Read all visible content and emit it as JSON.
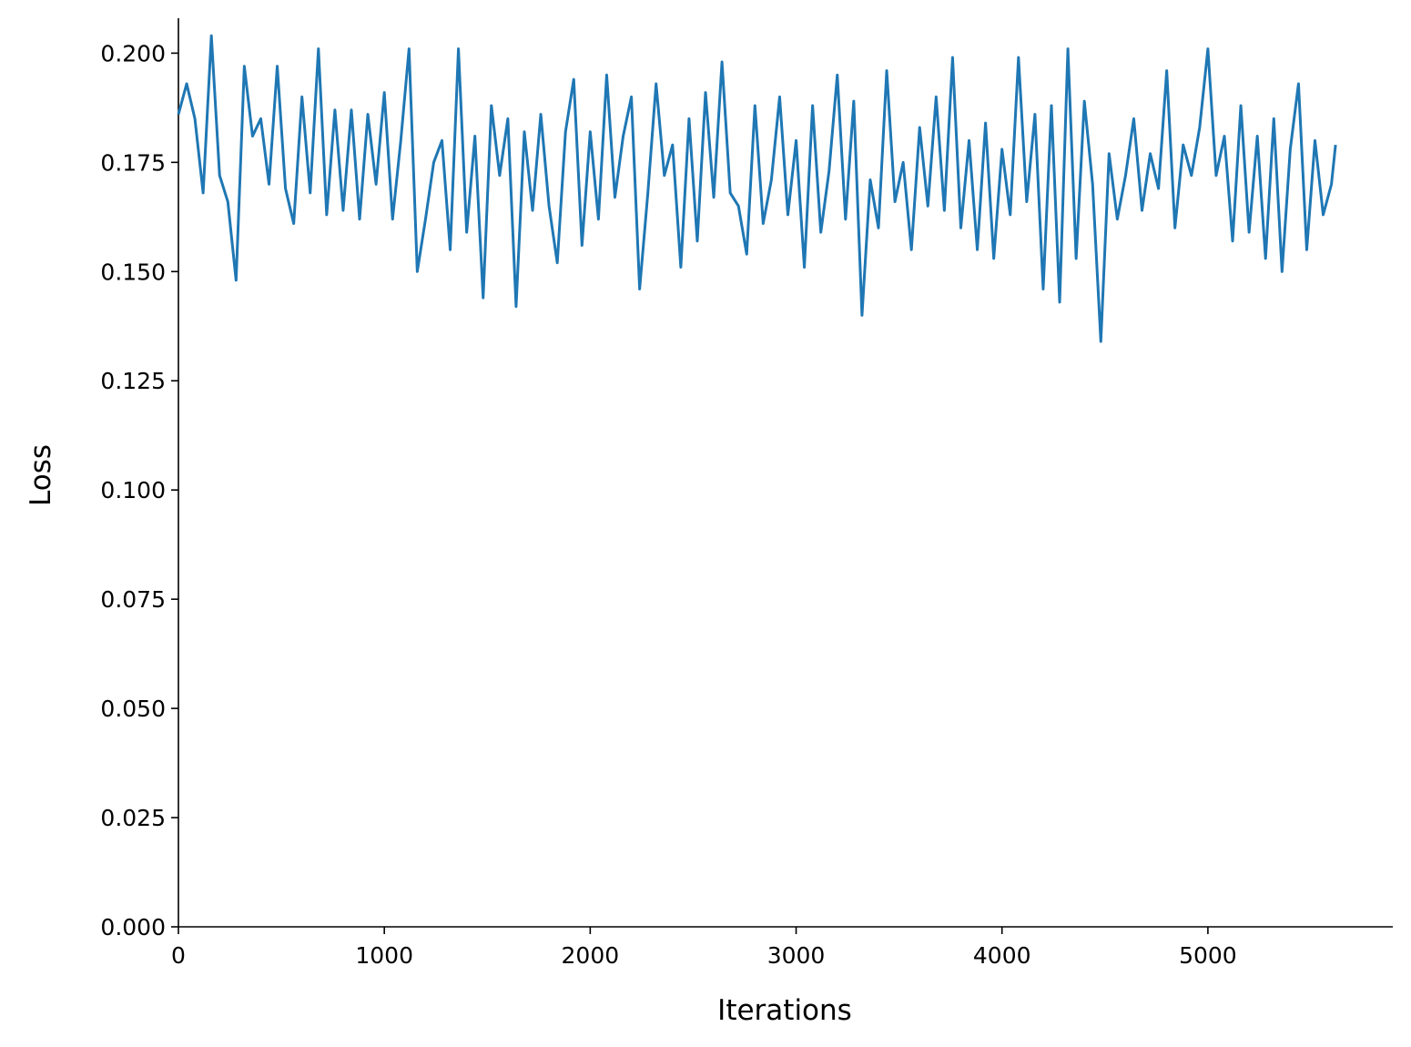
{
  "chart_data": {
    "type": "line",
    "xlabel": "Iterations",
    "ylabel": "Loss",
    "x": [
      0,
      40,
      80,
      120,
      160,
      200,
      240,
      280,
      320,
      360,
      400,
      440,
      480,
      520,
      560,
      600,
      640,
      680,
      720,
      760,
      800,
      840,
      880,
      920,
      960,
      1000,
      1040,
      1080,
      1120,
      1160,
      1200,
      1240,
      1280,
      1320,
      1360,
      1400,
      1440,
      1480,
      1520,
      1560,
      1600,
      1640,
      1680,
      1720,
      1760,
      1800,
      1840,
      1880,
      1920,
      1960,
      2000,
      2040,
      2080,
      2120,
      2160,
      2200,
      2240,
      2280,
      2320,
      2360,
      2400,
      2440,
      2480,
      2520,
      2560,
      2600,
      2640,
      2680,
      2720,
      2760,
      2800,
      2840,
      2880,
      2920,
      2960,
      3000,
      3040,
      3080,
      3120,
      3160,
      3200,
      3240,
      3280,
      3320,
      3360,
      3400,
      3440,
      3480,
      3520,
      3560,
      3600,
      3640,
      3680,
      3720,
      3760,
      3800,
      3840,
      3880,
      3920,
      3960,
      4000,
      4040,
      4080,
      4120,
      4160,
      4200,
      4240,
      4280,
      4320,
      4360,
      4400,
      4440,
      4480,
      4520,
      4560,
      4600,
      4640,
      4680,
      4720,
      4760,
      4800,
      4840,
      4880,
      4920,
      4960,
      5000,
      5040,
      5080,
      5120,
      5160,
      5200,
      5240,
      5280,
      5320,
      5360,
      5400,
      5440,
      5480,
      5520,
      5560,
      5600,
      5620
    ],
    "series": [
      {
        "name": "Loss",
        "color": "#1f77b4",
        "values": [
          0.186,
          0.193,
          0.185,
          0.168,
          0.204,
          0.172,
          0.166,
          0.148,
          0.197,
          0.181,
          0.185,
          0.17,
          0.197,
          0.169,
          0.161,
          0.19,
          0.168,
          0.201,
          0.163,
          0.187,
          0.164,
          0.187,
          0.162,
          0.186,
          0.17,
          0.191,
          0.162,
          0.18,
          0.201,
          0.15,
          0.162,
          0.175,
          0.18,
          0.155,
          0.201,
          0.159,
          0.181,
          0.144,
          0.188,
          0.172,
          0.185,
          0.142,
          0.182,
          0.164,
          0.186,
          0.165,
          0.152,
          0.182,
          0.194,
          0.156,
          0.182,
          0.162,
          0.195,
          0.167,
          0.181,
          0.19,
          0.146,
          0.168,
          0.193,
          0.172,
          0.179,
          0.151,
          0.185,
          0.157,
          0.191,
          0.167,
          0.198,
          0.168,
          0.165,
          0.154,
          0.188,
          0.161,
          0.171,
          0.19,
          0.163,
          0.18,
          0.151,
          0.188,
          0.159,
          0.173,
          0.195,
          0.162,
          0.189,
          0.14,
          0.171,
          0.16,
          0.196,
          0.166,
          0.175,
          0.155,
          0.183,
          0.165,
          0.19,
          0.164,
          0.199,
          0.16,
          0.18,
          0.155,
          0.184,
          0.153,
          0.178,
          0.163,
          0.199,
          0.166,
          0.186,
          0.146,
          0.188,
          0.143,
          0.201,
          0.153,
          0.189,
          0.17,
          0.134,
          0.177,
          0.162,
          0.172,
          0.185,
          0.164,
          0.177,
          0.169,
          0.196,
          0.16,
          0.179,
          0.172,
          0.183,
          0.201,
          0.172,
          0.181,
          0.157,
          0.188,
          0.159,
          0.181,
          0.153,
          0.185,
          0.15,
          0.178,
          0.193,
          0.155,
          0.18,
          0.163,
          0.17,
          0.179
        ]
      }
    ],
    "xlim": [
      0,
      5898
    ],
    "xticks": [
      0,
      1000,
      2000,
      3000,
      4000,
      5000
    ],
    "ylim": [
      0,
      0.208
    ],
    "yticks": [
      {
        "value": 0,
        "label": "0.000"
      },
      0.025,
      {
        "value": 0.05,
        "label": "0.050"
      },
      0.075,
      {
        "value": 0.1,
        "label": "0.100"
      },
      0.125,
      {
        "value": 0.15,
        "label": "0.150"
      },
      0.175,
      {
        "value": 0.2,
        "label": "0.200"
      }
    ]
  }
}
